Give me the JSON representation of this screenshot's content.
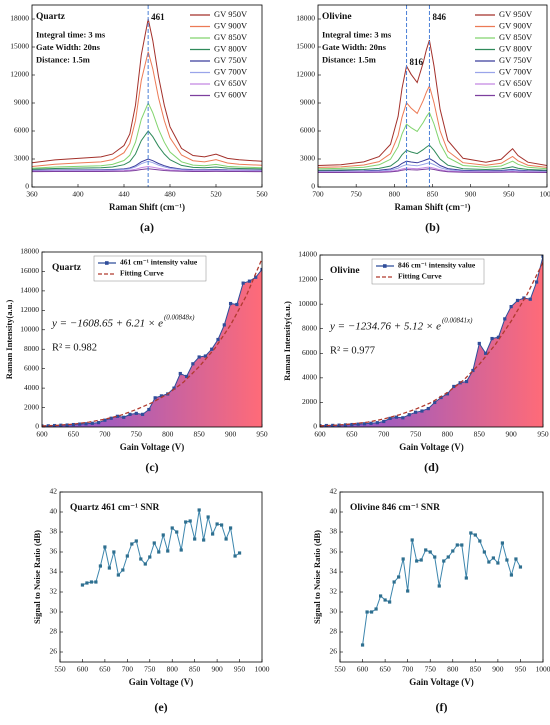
{
  "chart_data": [
    {
      "type": "line",
      "panel_label": "(a)",
      "x_label": "Raman Shift (cm⁻¹)",
      "annotations": [
        "Quartz",
        "Integral time: 3 ms",
        "Gate Width: 20ns",
        "Distance: 1.5m"
      ],
      "vlines": [
        461
      ],
      "legend": "upper right",
      "xlim": [
        360,
        560
      ],
      "xticks": [
        360,
        400,
        440,
        480,
        520,
        560
      ],
      "ylim": [
        0,
        19500
      ],
      "yticks": [
        0,
        3000,
        6000,
        9000,
        12000,
        15000,
        18000
      ],
      "x": [
        360,
        380,
        400,
        420,
        430,
        440,
        445,
        450,
        455,
        461,
        465,
        470,
        475,
        480,
        490,
        500,
        510,
        520,
        530,
        540,
        560
      ],
      "series": [
        {
          "name": "GV 950V",
          "color": "#a3302a",
          "values": [
            2600,
            2900,
            3060,
            3220,
            3520,
            4450,
            5680,
            8760,
            14150,
            18000,
            15690,
            11840,
            8760,
            6450,
            4140,
            3370,
            3220,
            3520,
            3060,
            2910,
            2750
          ]
        },
        {
          "name": "GV 900V",
          "color": "#ec7a55",
          "values": [
            2200,
            2446,
            2569,
            2692,
            2938,
            3676,
            4660,
            7120,
            11425,
            14500,
            12655,
            9580,
            7120,
            5275,
            3430,
            2815,
            2692,
            2938,
            2569,
            2446,
            2323
          ]
        },
        {
          "name": "GV 850V",
          "color": "#82d46e",
          "values": [
            2000,
            2140,
            2210,
            2280,
            2420,
            2840,
            3400,
            4800,
            7250,
            9000,
            7950,
            6200,
            4800,
            3750,
            2700,
            2350,
            2280,
            2420,
            2210,
            2140,
            2070
          ]
        },
        {
          "name": "GV 800V",
          "color": "#2f8a5a",
          "values": [
            1900,
            1982,
            2023,
            2064,
            2146,
            2392,
            2720,
            3540,
            4975,
            6000,
            5385,
            4360,
            3540,
            2925,
            2310,
            2105,
            2064,
            2146,
            2023,
            1982,
            1941
          ]
        },
        {
          "name": "GV 750V",
          "color": "#3b3d9c",
          "values": [
            1800,
            1824,
            1836,
            1848,
            1872,
            1944,
            2040,
            2280,
            2700,
            3000,
            2820,
            2520,
            2280,
            2100,
            1920,
            1860,
            1848,
            1872,
            1836,
            1824,
            1812
          ]
        },
        {
          "name": "GV 700V",
          "color": "#9aa4ea",
          "values": [
            1750,
            1770,
            1780,
            1790,
            1810,
            1870,
            1950,
            2150,
            2500,
            2750,
            2600,
            2350,
            2150,
            2000,
            1850,
            1800,
            1790,
            1810,
            1780,
            1770,
            1760
          ]
        },
        {
          "name": "GV 650V",
          "color": "#c487e2",
          "values": [
            1700,
            1710,
            1715,
            1720,
            1730,
            1760,
            1800,
            1900,
            2075,
            2200,
            2125,
            2000,
            1900,
            1825,
            1750,
            1725,
            1720,
            1730,
            1715,
            1710,
            1705
          ]
        },
        {
          "name": "GV 600V",
          "color": "#7d3f9e",
          "values": [
            1650,
            1656,
            1659,
            1662,
            1668,
            1686,
            1710,
            1770,
            1875,
            1950,
            1905,
            1830,
            1770,
            1725,
            1680,
            1665,
            1662,
            1668,
            1659,
            1656,
            1653
          ]
        }
      ]
    },
    {
      "type": "line",
      "panel_label": "(b)",
      "x_label": "Raman Shift (cm⁻¹)",
      "annotations": [
        "Olivine",
        "Integral time: 3 ms",
        "Gate Width: 20ns",
        "Distance: 1.5m"
      ],
      "vlines": [
        816,
        846
      ],
      "legend": "upper right",
      "xlim": [
        700,
        1000
      ],
      "xticks": [
        700,
        750,
        800,
        850,
        900,
        950,
        1000
      ],
      "ylim": [
        0,
        19500
      ],
      "yticks": [
        0,
        3000,
        6000,
        9000,
        12000,
        15000,
        18000
      ],
      "x": [
        700,
        730,
        760,
        780,
        795,
        805,
        810,
        816,
        822,
        830,
        838,
        842,
        846,
        852,
        860,
        870,
        890,
        920,
        940,
        950,
        955,
        962,
        975,
        1000
      ],
      "series": [
        {
          "name": "GV 950V",
          "color": "#a3302a",
          "values": [
            2300,
            2387,
            2691,
            3256,
            4560,
            7560,
            10560,
            12950,
            12075,
            11195,
            13355,
            14696,
            15735,
            12961,
            8324,
            4987,
            3080,
            2650,
            2970,
            3740,
            4100,
            3380,
            2660,
            2300
          ]
        },
        {
          "name": "GV 900V",
          "color": "#ec7a55",
          "values": [
            2100,
            2157,
            2354,
            2721,
            3569,
            5519,
            7469,
            9023,
            8454,
            7882,
            9286,
            10157,
            10833,
            9030,
            6016,
            3847,
            2607,
            2328,
            2536,
            3036,
            3270,
            2802,
            2334,
            2100
          ]
        },
        {
          "name": "GV 850V",
          "color": "#82d46e",
          "values": [
            1950,
            1989,
            2126,
            2380,
            2967,
            4317,
            5667,
            6743,
            6349,
            5953,
            6925,
            7528,
            7996,
            6747,
            4661,
            3159,
            2301,
            2108,
            2252,
            2598,
            2760,
            2436,
            2112,
            1950
          ]
        },
        {
          "name": "GV 800V",
          "color": "#2f8a5a",
          "values": [
            1800,
            1817,
            1878,
            1991,
            2252,
            2852,
            3452,
            3930,
            3755,
            3579,
            4011,
            4279,
            4487,
            3932,
            3005,
            2337,
            1956,
            1870,
            1934,
            2088,
            2160,
            2016,
            1872,
            1800
          ]
        },
        {
          "name": "GV 750V",
          "color": "#3b3d9c",
          "values": [
            1700,
            1709,
            1739,
            1796,
            1926,
            2226,
            2526,
            2765,
            2678,
            2590,
            2806,
            2940,
            3044,
            2766,
            2302,
            1969,
            1778,
            1735,
            1767,
            1844,
            1880,
            1808,
            1736,
            1700
          ]
        },
        {
          "name": "GV 700V",
          "color": "#9aa4ea",
          "values": [
            1650,
            1656,
            1677,
            1717,
            1808,
            2018,
            2228,
            2396,
            2334,
            2273,
            2424,
            2518,
            2590,
            2396,
            2072,
            1838,
            1705,
            1675,
            1697,
            1751,
            1776,
            1726,
            1675,
            1650
          ]
        },
        {
          "name": "GV 650V",
          "color": "#c487e2",
          "values": [
            1600,
            1603,
            1616,
            1638,
            1690,
            1810,
            1930,
            2026,
            1991,
            1956,
            2042,
            2096,
            2137,
            2026,
            1841,
            1707,
            1631,
            1614,
            1627,
            1658,
            1672,
            1643,
            1614,
            1600
          ]
        },
        {
          "name": "GV 600V",
          "color": "#7d3f9e",
          "values": [
            1550,
            1553,
            1562,
            1579,
            1618,
            1708,
            1798,
            1870,
            1843,
            1817,
            1882,
            1922,
            1953,
            1870,
            1731,
            1631,
            1573,
            1561,
            1570,
            1593,
            1604,
            1582,
            1561,
            1550
          ]
        }
      ]
    },
    {
      "type": "area",
      "panel_label": "(c)",
      "x_label": "Gain Voltage (V)",
      "y_label": "Raman Intensity(a.u.)",
      "annotations": [
        "Quartz"
      ],
      "equation": "y = −1608.65 + 6.21 × e",
      "equation_exponent": "(0.00848x)",
      "r_squared": "R² = 0.982",
      "legend": "upper center",
      "fill_colors": [
        "#7d55d8",
        "#ff6b78"
      ],
      "xlim": [
        600,
        950
      ],
      "xticks": [
        600,
        650,
        700,
        750,
        800,
        850,
        900,
        950
      ],
      "ylim": [
        0,
        18000
      ],
      "yticks": [
        0,
        2000,
        4000,
        6000,
        8000,
        10000,
        12000,
        14000,
        16000,
        18000
      ],
      "x": [
        600,
        610,
        620,
        630,
        640,
        650,
        660,
        670,
        680,
        690,
        700,
        710,
        720,
        730,
        740,
        750,
        760,
        770,
        780,
        790,
        800,
        810,
        820,
        830,
        840,
        850,
        860,
        870,
        880,
        890,
        900,
        910,
        920,
        930,
        940,
        950
      ],
      "series": [
        {
          "name": "461 cm⁻¹ intensity value",
          "color": "#2f4d9a",
          "values": [
            100,
            120,
            150,
            180,
            200,
            250,
            300,
            330,
            380,
            450,
            700,
            900,
            1100,
            1000,
            1300,
            1400,
            1300,
            1800,
            3000,
            3200,
            3400,
            4000,
            5500,
            5200,
            6500,
            7200,
            7300,
            8000,
            9000,
            10500,
            12700,
            12600,
            14800,
            15000,
            15400,
            16200
          ]
        },
        {
          "name": "Fitting Curve",
          "color": "#b03a2e",
          "dashed": true,
          "x": [
            600,
            625,
            650,
            675,
            700,
            725,
            750,
            775,
            800,
            825,
            850,
            875,
            900,
            925,
            950
          ],
          "values": [
            100,
            180,
            300,
            500,
            800,
            1200,
            1800,
            2500,
            3400,
            4600,
            6200,
            8100,
            10500,
            13500,
            17300
          ]
        }
      ]
    },
    {
      "type": "area",
      "panel_label": "(d)",
      "x_label": "Gain Voltage (V)",
      "y_label": "Raman Intensity(a.u.)",
      "annotations": [
        "Olivine"
      ],
      "equation": "y = −1234.76 + 5.12 × e",
      "equation_exponent": "(0.00841x)",
      "r_squared": "R² = 0.977",
      "legend": "upper center",
      "fill_colors": [
        "#7d55d8",
        "#ff6b78"
      ],
      "xlim": [
        600,
        950
      ],
      "xticks": [
        600,
        650,
        700,
        750,
        800,
        850,
        900,
        950
      ],
      "ylim": [
        0,
        14000
      ],
      "yticks": [
        0,
        2000,
        4000,
        6000,
        8000,
        10000,
        12000,
        14000
      ],
      "x": [
        600,
        610,
        620,
        630,
        640,
        650,
        660,
        670,
        680,
        690,
        700,
        710,
        720,
        730,
        740,
        750,
        760,
        770,
        780,
        790,
        800,
        810,
        820,
        830,
        840,
        850,
        860,
        870,
        880,
        890,
        900,
        910,
        920,
        930,
        940,
        950
      ],
      "series": [
        {
          "name": "846 cm⁻¹ intensity value",
          "color": "#2f4d9a",
          "values": [
            100,
            120,
            130,
            150,
            170,
            200,
            230,
            260,
            300,
            350,
            450,
            700,
            800,
            750,
            1000,
            1200,
            1300,
            1500,
            2000,
            2400,
            2700,
            3300,
            3600,
            3700,
            4600,
            6800,
            6000,
            7200,
            7300,
            8800,
            9800,
            10300,
            10500,
            10400,
            11800,
            13900
          ]
        },
        {
          "name": "Fitting Curve",
          "color": "#b03a2e",
          "dashed": true,
          "x": [
            600,
            625,
            650,
            675,
            700,
            725,
            750,
            775,
            800,
            825,
            850,
            875,
            900,
            925,
            950
          ],
          "values": [
            100,
            150,
            250,
            400,
            650,
            1000,
            1450,
            2000,
            2800,
            3800,
            5100,
            6700,
            8600,
            10800,
            13400
          ]
        }
      ]
    },
    {
      "type": "line",
      "markers": true,
      "panel_label": "(e)",
      "x_label": "Gain Voltage (V)",
      "y_label": "Signal to Noise Ratio (dB)",
      "annotations": [
        "Quartz  461 cm⁻¹  SNR"
      ],
      "xlim": [
        550,
        1000
      ],
      "xticks": [
        550,
        600,
        650,
        700,
        750,
        800,
        850,
        900,
        950,
        1000
      ],
      "ylim": [
        25,
        42
      ],
      "yticks": [
        26,
        28,
        30,
        32,
        34,
        36,
        38,
        40,
        42
      ],
      "x": [
        600,
        610,
        620,
        630,
        640,
        650,
        660,
        670,
        680,
        690,
        700,
        710,
        720,
        730,
        740,
        750,
        760,
        770,
        780,
        790,
        800,
        810,
        820,
        830,
        840,
        850,
        860,
        870,
        880,
        890,
        900,
        910,
        920,
        930,
        940,
        950
      ],
      "series": [
        {
          "color": "#3d86ad",
          "values": [
            32.7,
            32.9,
            33.0,
            33.0,
            34.6,
            36.5,
            34.4,
            36.0,
            33.7,
            34.2,
            35.6,
            36.8,
            37.1,
            35.3,
            34.8,
            35.5,
            36.9,
            36.0,
            37.7,
            36.1,
            38.4,
            38.0,
            36.2,
            39.0,
            39.1,
            37.3,
            40.2,
            37.2,
            39.5,
            37.8,
            38.8,
            38.7,
            37.3,
            38.4,
            35.6,
            35.9
          ]
        }
      ]
    },
    {
      "type": "line",
      "markers": true,
      "panel_label": "(f)",
      "x_label": "Gain Voltage (V)",
      "y_label": "Signal to Noise Ratio (dB)",
      "annotations": [
        "Olivine  846 cm⁻¹  SNR"
      ],
      "xlim": [
        550,
        1000
      ],
      "xticks": [
        550,
        600,
        650,
        700,
        750,
        800,
        850,
        900,
        950,
        1000
      ],
      "ylim": [
        25,
        42
      ],
      "yticks": [
        26,
        28,
        30,
        32,
        34,
        36,
        38,
        40,
        42
      ],
      "x": [
        600,
        610,
        620,
        630,
        640,
        650,
        660,
        670,
        680,
        690,
        700,
        710,
        720,
        730,
        740,
        750,
        760,
        770,
        780,
        790,
        800,
        810,
        820,
        830,
        840,
        850,
        860,
        870,
        880,
        890,
        900,
        910,
        920,
        930,
        940,
        950
      ],
      "series": [
        {
          "color": "#3d86ad",
          "values": [
            26.7,
            30.0,
            30.0,
            30.3,
            31.6,
            31.2,
            31.0,
            33.0,
            33.5,
            35.3,
            32.1,
            37.2,
            35.1,
            35.2,
            36.2,
            36.0,
            35.5,
            32.6,
            35.1,
            35.5,
            36.1,
            36.7,
            36.7,
            33.4,
            37.9,
            37.7,
            37.1,
            36.0,
            35.0,
            35.4,
            34.9,
            36.9,
            35.2,
            33.7,
            35.3,
            34.5
          ]
        }
      ]
    }
  ]
}
